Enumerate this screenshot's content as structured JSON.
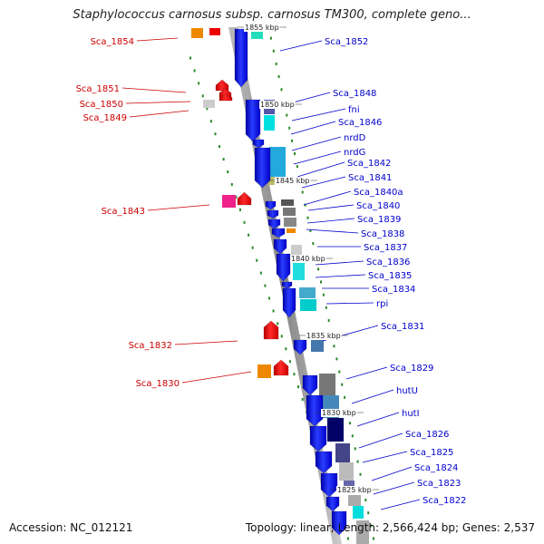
{
  "title": "Staphylococcus carnosus subsp. carnosus TM300, complete geno...",
  "footer": {
    "accession": "Accession: NC_012121",
    "stats": "Topology: linear; Length: 2,566,424 bp; Genes: 2,537"
  },
  "colors": {
    "left_label": "#cc0000",
    "right_label": "#0000cc",
    "axis": "#999999",
    "dots": "#2a8a2a",
    "blue": "#0000ee",
    "red": "#ee0000"
  },
  "scale": [
    {
      "label": "1855 kbp"
    },
    {
      "label": "1850 kbp"
    },
    {
      "label": "1845 kbp"
    },
    {
      "label": "1840 kbp"
    },
    {
      "label": "1835 kbp"
    },
    {
      "label": "1830 kbp"
    },
    {
      "label": "1825 kbp"
    }
  ],
  "genes_left": [
    {
      "label": "Sca_1854"
    },
    {
      "label": "Sca_1851"
    },
    {
      "label": "Sca_1850"
    },
    {
      "label": "Sca_1849"
    },
    {
      "label": "Sca_1843"
    },
    {
      "label": "Sca_1832"
    },
    {
      "label": "Sca_1830"
    }
  ],
  "genes_right": [
    {
      "label": "Sca_1852"
    },
    {
      "label": "Sca_1848"
    },
    {
      "label": "fni"
    },
    {
      "label": "Sca_1846"
    },
    {
      "label": "nrdD"
    },
    {
      "label": "nrdG"
    },
    {
      "label": "Sca_1842"
    },
    {
      "label": "Sca_1841"
    },
    {
      "label": "Sca_1840a"
    },
    {
      "label": "Sca_1840"
    },
    {
      "label": "Sca_1839"
    },
    {
      "label": "Sca_1838"
    },
    {
      "label": "Sca_1837"
    },
    {
      "label": "Sca_1836"
    },
    {
      "label": "Sca_1835"
    },
    {
      "label": "Sca_1834"
    },
    {
      "label": "rpi"
    },
    {
      "label": "Sca_1831"
    },
    {
      "label": "Sca_1829"
    },
    {
      "label": "hutU"
    },
    {
      "label": "hutI"
    },
    {
      "label": "Sca_1826"
    },
    {
      "label": "Sca_1825"
    },
    {
      "label": "Sca_1824"
    },
    {
      "label": "Sca_1823"
    },
    {
      "label": "Sca_1822"
    }
  ]
}
